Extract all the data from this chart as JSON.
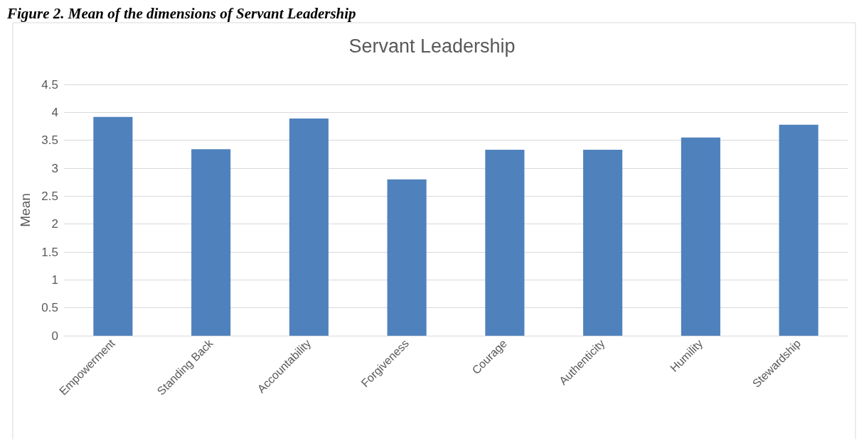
{
  "chart_data": {
    "type": "bar",
    "title": "Servant Leadership",
    "ylabel": "Mean",
    "annotations": [
      "Figure 2. Mean of the dimensions of Servant Leadership"
    ],
    "categories": [
      "Empowerment",
      "Standing Back",
      "Accountability",
      "Forgiveness",
      "Courage",
      "Authenticity",
      "Humility",
      "Stewardship"
    ],
    "values": [
      3.92,
      3.34,
      3.89,
      2.8,
      3.33,
      3.33,
      3.55,
      3.78
    ],
    "color": "#4f81bd",
    "ylim": [
      0,
      4.5
    ],
    "yticks": [
      0,
      0.5,
      1,
      1.5,
      2,
      2.5,
      3,
      3.5,
      4,
      4.5
    ],
    "grid": "y"
  }
}
